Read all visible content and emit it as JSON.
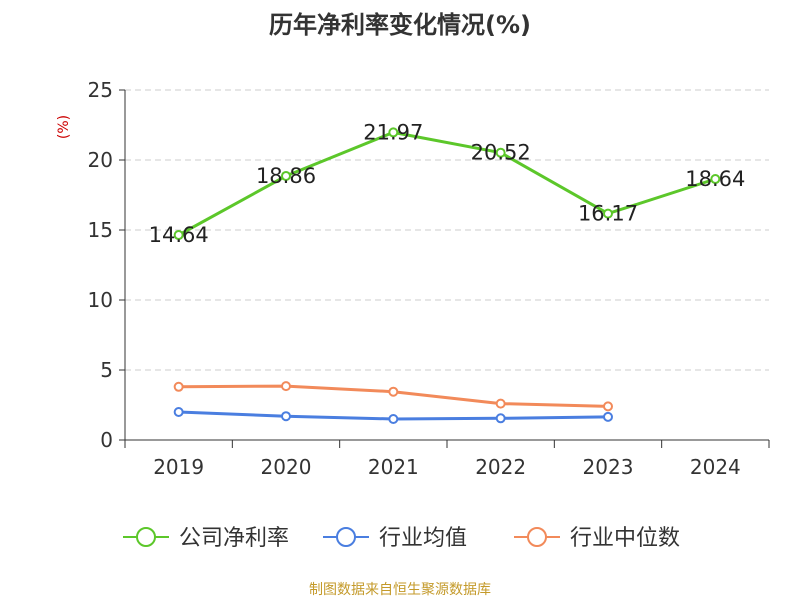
{
  "chart_data": {
    "type": "line",
    "title": "历年净利率变化情况(%)",
    "ylabel": "(%)",
    "xlabel": "",
    "categories": [
      "2019",
      "2020",
      "2021",
      "2022",
      "2023",
      "2024"
    ],
    "ylim": [
      0,
      25
    ],
    "yticks": [
      0,
      5,
      10,
      15,
      20,
      25
    ],
    "grid": true,
    "legend_position": "bottom",
    "series": [
      {
        "name": "公司净利率",
        "color": "#5cc72a",
        "values": [
          14.64,
          18.86,
          21.97,
          20.52,
          16.17,
          18.64
        ],
        "labels": [
          "14.64",
          "18.86",
          "21.97",
          "20.52",
          "16.17",
          "18.64"
        ]
      },
      {
        "name": "行业均值",
        "color": "#4a7ee0",
        "values": [
          2.0,
          1.7,
          1.5,
          1.55,
          1.65,
          null
        ]
      },
      {
        "name": "行业中位数",
        "color": "#f28a5a",
        "values": [
          3.8,
          3.85,
          3.45,
          2.6,
          2.4,
          null
        ]
      }
    ]
  },
  "footer": {
    "source": "制图数据来自恒生聚源数据库"
  }
}
